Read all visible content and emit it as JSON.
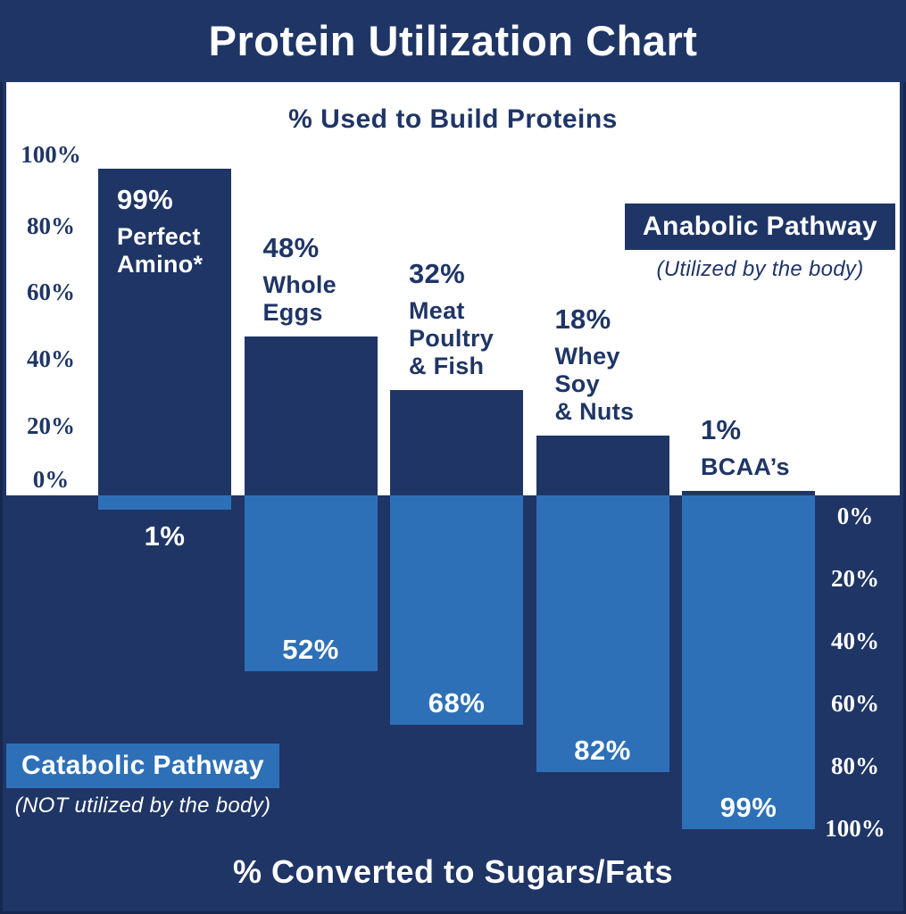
{
  "title": "Protein Utilization Chart",
  "colors": {
    "navy": "#1f3566",
    "light_blue": "#2d70b7",
    "white": "#ffffff"
  },
  "chart_data": {
    "type": "bar",
    "variant": "diverging-vertical",
    "title": "Protein Utilization Chart",
    "top_section": {
      "axis_label": "% Used to Build Proteins",
      "axis_side": "left",
      "ticks": [
        "100%",
        "80%",
        "60%",
        "40%",
        "20%",
        "0%"
      ],
      "range": [
        0,
        100
      ],
      "bar_color": "#1f3566"
    },
    "bottom_section": {
      "axis_label": "% Converted to Sugars/Fats",
      "axis_side": "right",
      "ticks": [
        "0%",
        "20%",
        "40%",
        "60%",
        "80%",
        "100%"
      ],
      "range": [
        0,
        100
      ],
      "bar_color": "#2d70b7"
    },
    "categories": [
      "Perfect Amino*",
      "Whole Eggs",
      "Meat Poultry & Fish",
      "Whey Soy & Nuts",
      "BCAA’s"
    ],
    "series": [
      {
        "name": "Anabolic Pathway",
        "caption": "(Utilized by the body)",
        "color": "#1f3566",
        "values": [
          99,
          48,
          32,
          18,
          1
        ]
      },
      {
        "name": "Catabolic Pathway",
        "caption": "(NOT utilized by the body)",
        "color": "#2d70b7",
        "values": [
          1,
          52,
          68,
          82,
          99
        ]
      }
    ],
    "bars": [
      {
        "category": "Perfect Amino*",
        "anabolic_pct": 99,
        "anabolic_label": "99%",
        "name_lines": [
          "Perfect",
          "Amino*"
        ],
        "name_placement": "inside",
        "catabolic_pct": 1,
        "catabolic_label": "1%",
        "catabolic_label_placement": "below"
      },
      {
        "category": "Whole Eggs",
        "anabolic_pct": 48,
        "anabolic_label": "48%",
        "name_lines": [
          "Whole",
          "Eggs"
        ],
        "name_placement": "above",
        "catabolic_pct": 52,
        "catabolic_label": "52%",
        "catabolic_label_placement": "inside"
      },
      {
        "category": "Meat Poultry & Fish",
        "anabolic_pct": 32,
        "anabolic_label": "32%",
        "name_lines": [
          "Meat",
          "Poultry",
          "& Fish"
        ],
        "name_placement": "above",
        "catabolic_pct": 68,
        "catabolic_label": "68%",
        "catabolic_label_placement": "inside"
      },
      {
        "category": "Whey Soy & Nuts",
        "anabolic_pct": 18,
        "anabolic_label": "18%",
        "name_lines": [
          "Whey",
          "Soy",
          "& Nuts"
        ],
        "name_placement": "above",
        "catabolic_pct": 82,
        "catabolic_label": "82%",
        "catabolic_label_placement": "inside"
      },
      {
        "category": "BCAA’s",
        "anabolic_pct": 1,
        "anabolic_label": "1%",
        "name_lines": [
          "BCAA’s"
        ],
        "name_placement": "above",
        "catabolic_pct": 99,
        "catabolic_label": "99%",
        "catabolic_label_placement": "inside"
      }
    ],
    "legend": {
      "anabolic": {
        "label": "Anabolic Pathway",
        "caption": "(Utilized by the body)"
      },
      "catabolic": {
        "label": "Catabolic Pathway",
        "caption": "(NOT utilized by the body)"
      }
    }
  }
}
